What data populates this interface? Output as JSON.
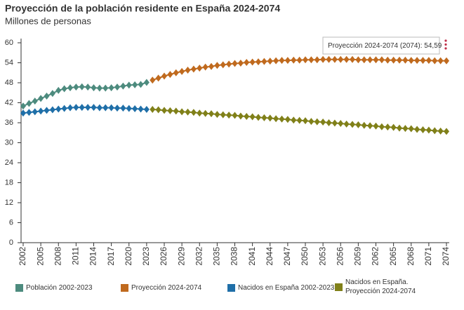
{
  "chart_data": {
    "type": "line",
    "title": "Proyección de la población residente en España 2024-2074",
    "subtitle": "Millones de personas",
    "tooltip": "Proyección 2024-2074 (2074): 54,59",
    "x": [
      2002,
      2003,
      2004,
      2005,
      2006,
      2007,
      2008,
      2009,
      2010,
      2011,
      2012,
      2013,
      2014,
      2015,
      2016,
      2017,
      2018,
      2019,
      2020,
      2021,
      2022,
      2023,
      2024,
      2025,
      2026,
      2027,
      2028,
      2029,
      2030,
      2031,
      2032,
      2033,
      2034,
      2035,
      2036,
      2037,
      2038,
      2039,
      2040,
      2041,
      2042,
      2043,
      2044,
      2045,
      2046,
      2047,
      2048,
      2049,
      2050,
      2051,
      2052,
      2053,
      2054,
      2055,
      2056,
      2057,
      2058,
      2059,
      2060,
      2061,
      2062,
      2063,
      2064,
      2065,
      2066,
      2067,
      2068,
      2069,
      2070,
      2071,
      2072,
      2073,
      2074
    ],
    "xlim": [
      2002,
      2074
    ],
    "xticks": [
      2002,
      2005,
      2008,
      2011,
      2014,
      2017,
      2020,
      2023,
      2026,
      2029,
      2032,
      2035,
      2038,
      2041,
      2044,
      2047,
      2050,
      2053,
      2056,
      2059,
      2062,
      2065,
      2068,
      2071,
      2074
    ],
    "ylim": [
      0,
      60
    ],
    "yticks": [
      0,
      6,
      12,
      18,
      24,
      30,
      36,
      42,
      48,
      54,
      60
    ],
    "series": [
      {
        "name": "Población 2002-2023",
        "color": "#4d8b7e",
        "values": [
          41.0,
          41.8,
          42.5,
          43.3,
          44.0,
          44.8,
          45.7,
          46.2,
          46.5,
          46.7,
          46.8,
          46.7,
          46.5,
          46.4,
          46.4,
          46.5,
          46.7,
          47.0,
          47.3,
          47.4,
          47.5,
          48.1,
          null,
          null,
          null,
          null,
          null,
          null,
          null,
          null,
          null,
          null,
          null,
          null,
          null,
          null,
          null,
          null,
          null,
          null,
          null,
          null,
          null,
          null,
          null,
          null,
          null,
          null,
          null,
          null,
          null,
          null,
          null,
          null,
          null,
          null,
          null,
          null,
          null,
          null,
          null,
          null,
          null,
          null,
          null,
          null,
          null,
          null,
          null,
          null,
          null,
          null,
          null
        ]
      },
      {
        "name": "Proyección 2024-2074",
        "color": "#c06a1e",
        "values": [
          null,
          null,
          null,
          null,
          null,
          null,
          null,
          null,
          null,
          null,
          null,
          null,
          null,
          null,
          null,
          null,
          null,
          null,
          null,
          null,
          null,
          null,
          48.8,
          49.4,
          50.0,
          50.5,
          51.0,
          51.4,
          51.8,
          52.1,
          52.4,
          52.7,
          52.9,
          53.2,
          53.4,
          53.6,
          53.8,
          53.9,
          54.1,
          54.2,
          54.3,
          54.4,
          54.5,
          54.6,
          54.7,
          54.7,
          54.8,
          54.8,
          54.9,
          54.9,
          54.9,
          55.0,
          55.0,
          55.0,
          55.0,
          55.0,
          55.0,
          54.9,
          54.9,
          54.9,
          54.9,
          54.9,
          54.8,
          54.8,
          54.8,
          54.8,
          54.7,
          54.7,
          54.7,
          54.7,
          54.6,
          54.6,
          54.59
        ]
      },
      {
        "name": "Nacidos en España 2002-2023",
        "color": "#1f6fa8",
        "values": [
          38.9,
          39.1,
          39.3,
          39.5,
          39.7,
          39.9,
          40.1,
          40.3,
          40.5,
          40.6,
          40.6,
          40.6,
          40.6,
          40.5,
          40.5,
          40.5,
          40.4,
          40.4,
          40.3,
          40.2,
          40.1,
          40.0,
          null,
          null,
          null,
          null,
          null,
          null,
          null,
          null,
          null,
          null,
          null,
          null,
          null,
          null,
          null,
          null,
          null,
          null,
          null,
          null,
          null,
          null,
          null,
          null,
          null,
          null,
          null,
          null,
          null,
          null,
          null,
          null,
          null,
          null,
          null,
          null,
          null,
          null,
          null,
          null,
          null,
          null,
          null,
          null,
          null,
          null,
          null,
          null,
          null,
          null,
          null
        ]
      },
      {
        "name": "Nacidos en España. Proyección 2024-2074",
        "color": "#808019",
        "values": [
          null,
          null,
          null,
          null,
          null,
          null,
          null,
          null,
          null,
          null,
          null,
          null,
          null,
          null,
          null,
          null,
          null,
          null,
          null,
          null,
          null,
          null,
          40.0,
          39.9,
          39.7,
          39.6,
          39.5,
          39.3,
          39.2,
          39.1,
          38.9,
          38.8,
          38.7,
          38.5,
          38.4,
          38.3,
          38.2,
          38.0,
          37.9,
          37.8,
          37.6,
          37.5,
          37.4,
          37.2,
          37.1,
          37.0,
          36.8,
          36.7,
          36.6,
          36.4,
          36.3,
          36.2,
          36.0,
          35.9,
          35.8,
          35.6,
          35.5,
          35.4,
          35.2,
          35.1,
          35.0,
          34.8,
          34.7,
          34.6,
          34.4,
          34.3,
          34.2,
          34.0,
          33.9,
          33.8,
          33.6,
          33.5,
          33.4
        ]
      }
    ]
  }
}
